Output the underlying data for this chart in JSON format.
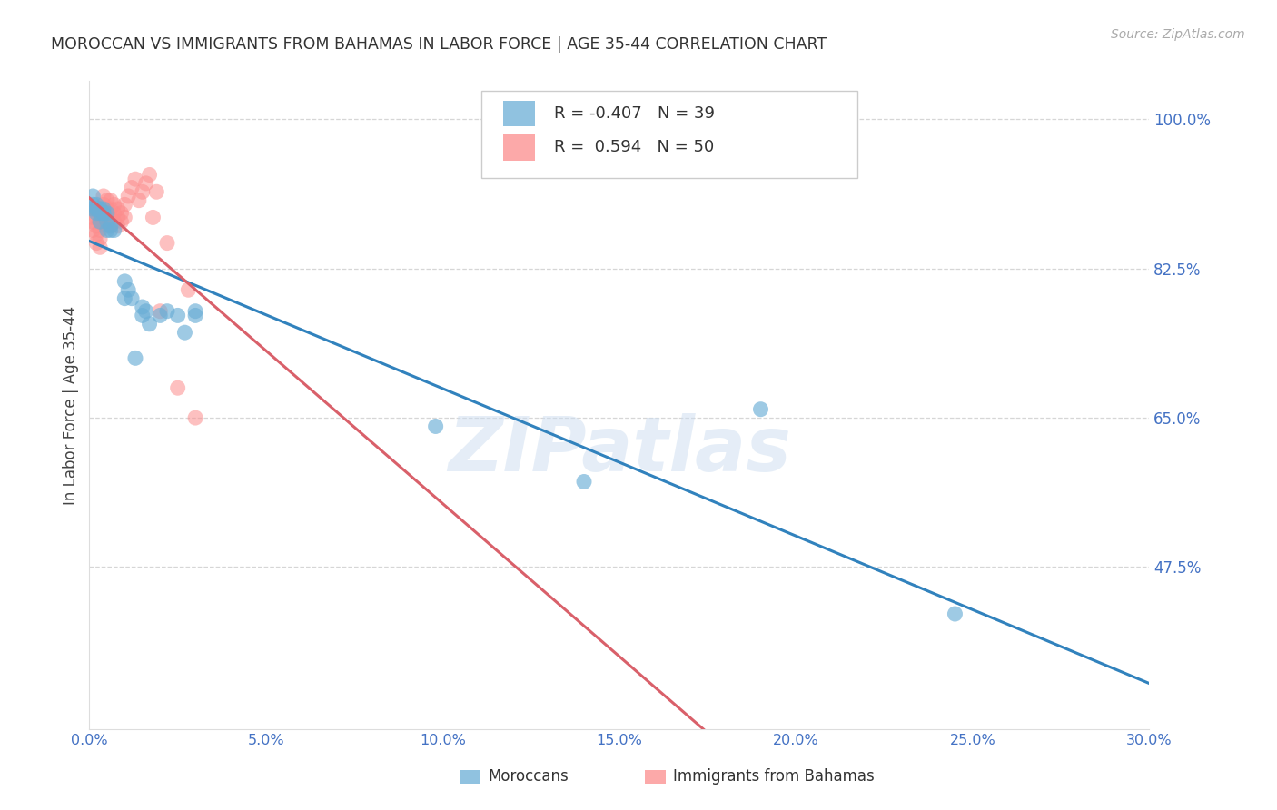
{
  "title": "MOROCCAN VS IMMIGRANTS FROM BAHAMAS IN LABOR FORCE | AGE 35-44 CORRELATION CHART",
  "source": "Source: ZipAtlas.com",
  "ylabel": "In Labor Force | Age 35-44",
  "xlim": [
    0.0,
    0.3
  ],
  "ylim": [
    0.285,
    1.045
  ],
  "yticks": [
    0.475,
    0.65,
    0.825,
    1.0
  ],
  "ytick_labels": [
    "47.5%",
    "65.0%",
    "82.5%",
    "100.0%"
  ],
  "xticks": [
    0.0,
    0.05,
    0.1,
    0.15,
    0.2,
    0.25,
    0.3
  ],
  "xtick_labels": [
    "0.0%",
    "5.0%",
    "10.0%",
    "15.0%",
    "20.0%",
    "25.0%",
    "30.0%"
  ],
  "blue_R": -0.407,
  "blue_N": 39,
  "pink_R": 0.594,
  "pink_N": 50,
  "blue_color": "#6baed6",
  "pink_color": "#fc8d8d",
  "blue_line_color": "#3182bd",
  "pink_line_color": "#d9606a",
  "legend_label_blue": "Moroccans",
  "legend_label_pink": "Immigrants from Bahamas",
  "blue_x": [
    0.001,
    0.001,
    0.001,
    0.002,
    0.002,
    0.002,
    0.002,
    0.003,
    0.003,
    0.003,
    0.003,
    0.004,
    0.004,
    0.004,
    0.005,
    0.005,
    0.005,
    0.006,
    0.006,
    0.007,
    0.01,
    0.01,
    0.011,
    0.012,
    0.013,
    0.015,
    0.015,
    0.016,
    0.017,
    0.02,
    0.022,
    0.025,
    0.027,
    0.03,
    0.03,
    0.098,
    0.14,
    0.19,
    0.245
  ],
  "blue_y": [
    0.9,
    0.91,
    0.895,
    0.89,
    0.895,
    0.9,
    0.895,
    0.88,
    0.89,
    0.895,
    0.895,
    0.89,
    0.89,
    0.895,
    0.87,
    0.88,
    0.89,
    0.87,
    0.875,
    0.87,
    0.79,
    0.81,
    0.8,
    0.79,
    0.72,
    0.77,
    0.78,
    0.775,
    0.76,
    0.77,
    0.775,
    0.77,
    0.75,
    0.77,
    0.775,
    0.64,
    0.575,
    0.66,
    0.42
  ],
  "pink_x": [
    0.001,
    0.001,
    0.001,
    0.001,
    0.002,
    0.002,
    0.002,
    0.002,
    0.002,
    0.003,
    0.003,
    0.003,
    0.003,
    0.003,
    0.004,
    0.004,
    0.004,
    0.004,
    0.005,
    0.005,
    0.005,
    0.005,
    0.006,
    0.006,
    0.006,
    0.006,
    0.007,
    0.007,
    0.007,
    0.008,
    0.008,
    0.008,
    0.009,
    0.009,
    0.01,
    0.01,
    0.011,
    0.012,
    0.013,
    0.014,
    0.015,
    0.016,
    0.017,
    0.018,
    0.019,
    0.02,
    0.022,
    0.025,
    0.028,
    0.03
  ],
  "pink_y": [
    0.87,
    0.88,
    0.885,
    0.895,
    0.855,
    0.865,
    0.875,
    0.885,
    0.895,
    0.85,
    0.86,
    0.87,
    0.88,
    0.895,
    0.88,
    0.89,
    0.9,
    0.91,
    0.875,
    0.885,
    0.895,
    0.905,
    0.875,
    0.885,
    0.895,
    0.905,
    0.88,
    0.89,
    0.9,
    0.875,
    0.885,
    0.895,
    0.88,
    0.89,
    0.885,
    0.9,
    0.91,
    0.92,
    0.93,
    0.905,
    0.915,
    0.925,
    0.935,
    0.885,
    0.915,
    0.775,
    0.855,
    0.685,
    0.8,
    0.65
  ],
  "background_color": "#ffffff",
  "title_color": "#333333",
  "axis_label_color": "#4472c4",
  "grid_color": "#cccccc",
  "watermark": "ZIPatlas"
}
